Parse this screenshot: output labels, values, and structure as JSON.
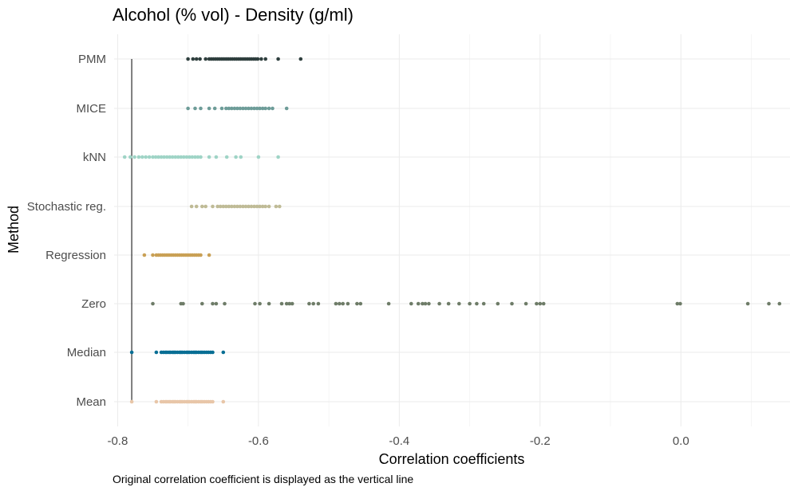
{
  "chart_data": {
    "type": "scatter",
    "title": "Alcohol (% vol) - Density (g/ml)",
    "xlabel": "Correlation coefficients",
    "ylabel": "Method",
    "caption": "Original correlation coefficient is displayed as the vertical line",
    "xlim": [
      -0.805,
      0.155
    ],
    "x_ticks": [
      -0.8,
      -0.6,
      -0.4,
      -0.2,
      0.0
    ],
    "x_tick_labels": [
      "-0.8",
      "-0.6",
      "-0.4",
      "-0.2",
      "0.0"
    ],
    "grid": true,
    "reference_line": -0.78,
    "categories": [
      "Mean",
      "Median",
      "Zero",
      "Regression",
      "Stochastic reg.",
      "kNN",
      "MICE",
      "PMM"
    ],
    "series": [
      {
        "name": "Mean",
        "color": "#e8c6a8",
        "values": [
          -0.78,
          -0.745,
          -0.738,
          -0.735,
          -0.732,
          -0.73,
          -0.727,
          -0.725,
          -0.722,
          -0.72,
          -0.718,
          -0.715,
          -0.712,
          -0.71,
          -0.708,
          -0.705,
          -0.702,
          -0.7,
          -0.698,
          -0.695,
          -0.692,
          -0.69,
          -0.688,
          -0.685,
          -0.682,
          -0.68,
          -0.677,
          -0.674,
          -0.671,
          -0.668,
          -0.665,
          -0.65
        ]
      },
      {
        "name": "Median",
        "color": "#086e94",
        "values": [
          -0.78,
          -0.745,
          -0.738,
          -0.735,
          -0.732,
          -0.73,
          -0.727,
          -0.725,
          -0.722,
          -0.72,
          -0.718,
          -0.715,
          -0.712,
          -0.71,
          -0.708,
          -0.705,
          -0.702,
          -0.7,
          -0.698,
          -0.695,
          -0.692,
          -0.69,
          -0.688,
          -0.685,
          -0.682,
          -0.68,
          -0.677,
          -0.674,
          -0.671,
          -0.668,
          -0.665,
          -0.65
        ]
      },
      {
        "name": "Zero",
        "color": "#6e7c68",
        "values": [
          -0.75,
          -0.71,
          -0.707,
          -0.68,
          -0.665,
          -0.66,
          -0.648,
          -0.605,
          -0.598,
          -0.585,
          -0.567,
          -0.56,
          -0.556,
          -0.552,
          -0.528,
          -0.522,
          -0.515,
          -0.49,
          -0.485,
          -0.48,
          -0.473,
          -0.46,
          -0.455,
          -0.415,
          -0.383,
          -0.373,
          -0.367,
          -0.363,
          -0.358,
          -0.343,
          -0.33,
          -0.315,
          -0.3,
          -0.29,
          -0.28,
          -0.26,
          -0.24,
          -0.22,
          -0.205,
          -0.2,
          -0.195,
          -0.005,
          -0.001,
          0.095,
          0.125,
          0.14
        ]
      },
      {
        "name": "Regression",
        "color": "#c9a055",
        "values": [
          -0.762,
          -0.75,
          -0.745,
          -0.742,
          -0.739,
          -0.736,
          -0.733,
          -0.73,
          -0.727,
          -0.724,
          -0.721,
          -0.718,
          -0.715,
          -0.712,
          -0.709,
          -0.706,
          -0.703,
          -0.7,
          -0.697,
          -0.694,
          -0.691,
          -0.688,
          -0.685,
          -0.682,
          -0.67
        ]
      },
      {
        "name": "Stochastic reg.",
        "color": "#bfbb96",
        "values": [
          -0.695,
          -0.688,
          -0.68,
          -0.675,
          -0.665,
          -0.658,
          -0.654,
          -0.65,
          -0.646,
          -0.642,
          -0.638,
          -0.634,
          -0.63,
          -0.626,
          -0.622,
          -0.618,
          -0.614,
          -0.61,
          -0.606,
          -0.602,
          -0.598,
          -0.594,
          -0.59,
          -0.585,
          -0.575,
          -0.57
        ]
      },
      {
        "name": "kNN",
        "color": "#9fd4c6",
        "values": [
          -0.79,
          -0.782,
          -0.776,
          -0.77,
          -0.765,
          -0.76,
          -0.755,
          -0.75,
          -0.746,
          -0.742,
          -0.738,
          -0.734,
          -0.73,
          -0.726,
          -0.722,
          -0.718,
          -0.714,
          -0.71,
          -0.706,
          -0.702,
          -0.698,
          -0.694,
          -0.69,
          -0.686,
          -0.682,
          -0.67,
          -0.66,
          -0.645,
          -0.632,
          -0.625,
          -0.6,
          -0.572
        ]
      },
      {
        "name": "MICE",
        "color": "#6d9c98",
        "values": [
          -0.7,
          -0.69,
          -0.682,
          -0.67,
          -0.662,
          -0.652,
          -0.646,
          -0.642,
          -0.638,
          -0.634,
          -0.63,
          -0.626,
          -0.622,
          -0.618,
          -0.614,
          -0.61,
          -0.606,
          -0.602,
          -0.598,
          -0.594,
          -0.59,
          -0.585,
          -0.58,
          -0.56
        ]
      },
      {
        "name": "PMM",
        "color": "#2f3f3e",
        "values": [
          -0.7,
          -0.693,
          -0.688,
          -0.683,
          -0.675,
          -0.67,
          -0.667,
          -0.664,
          -0.661,
          -0.658,
          -0.655,
          -0.652,
          -0.649,
          -0.646,
          -0.643,
          -0.64,
          -0.637,
          -0.634,
          -0.631,
          -0.628,
          -0.625,
          -0.622,
          -0.619,
          -0.616,
          -0.613,
          -0.61,
          -0.607,
          -0.604,
          -0.601,
          -0.596,
          -0.59,
          -0.572,
          -0.54
        ]
      }
    ]
  }
}
